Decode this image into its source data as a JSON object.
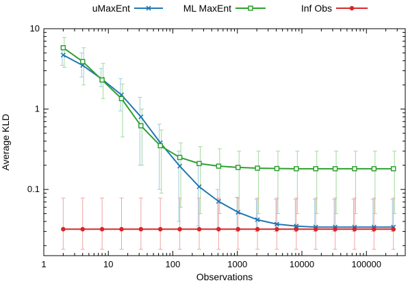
{
  "chart_data": {
    "type": "line",
    "xlabel": "Observations",
    "ylabel": "Average KLD",
    "x_scale": "log",
    "y_scale": "log",
    "xlim": [
      1,
      400000
    ],
    "ylim": [
      0.015,
      10
    ],
    "x_ticks": [
      {
        "value": 1,
        "label": "1"
      },
      {
        "value": 10,
        "label": "10"
      },
      {
        "value": 100,
        "label": "100"
      },
      {
        "value": 1000,
        "label": "1000"
      },
      {
        "value": 10000,
        "label": "10000"
      },
      {
        "value": 100000,
        "label": "100000"
      }
    ],
    "y_ticks": [
      {
        "value": 0.1,
        "label": "0.1"
      },
      {
        "value": 1,
        "label": "1"
      },
      {
        "value": 10,
        "label": "10"
      }
    ],
    "grid": false,
    "legend_position": "top",
    "x": [
      2,
      4,
      8,
      16,
      32,
      64,
      128,
      256,
      512,
      1024,
      2048,
      4096,
      8192,
      16384,
      32768,
      65536,
      131072,
      262144
    ],
    "series": [
      {
        "name": "uMaxEnt",
        "color": "#1f77b4",
        "error_color": "#9ecae1",
        "marker": "x",
        "values": [
          4.7,
          3.5,
          2.35,
          1.5,
          0.8,
          0.38,
          0.195,
          0.108,
          0.071,
          0.052,
          0.042,
          0.037,
          0.035,
          0.034,
          0.034,
          0.034,
          0.034,
          0.034
        ],
        "err_low": [
          3.5,
          2.5,
          1.9,
          0.95,
          0.2,
          0.1,
          0.04,
          0.035,
          0.033,
          0.03,
          0.03,
          0.03,
          0.03,
          0.03,
          0.03,
          0.03,
          0.03,
          0.03
        ],
        "err_high": [
          6.0,
          5.0,
          3.2,
          2.4,
          1.4,
          0.65,
          0.3,
          0.2,
          0.1,
          0.08,
          0.075,
          0.075,
          0.075,
          0.075,
          0.075,
          0.075,
          0.075,
          0.075
        ]
      },
      {
        "name": "ML MaxEnt",
        "color": "#2ca02c",
        "error_color": "#a1d99b",
        "marker": "square",
        "values": [
          5.8,
          3.9,
          2.3,
          1.35,
          0.62,
          0.35,
          0.25,
          0.21,
          0.195,
          0.188,
          0.184,
          0.182,
          0.181,
          0.181,
          0.181,
          0.181,
          0.181,
          0.181
        ],
        "err_low": [
          3.3,
          2.0,
          1.35,
          0.45,
          0.2,
          0.09,
          0.06,
          0.05,
          0.05,
          0.05,
          0.05,
          0.05,
          0.05,
          0.05,
          0.05,
          0.05,
          0.05,
          0.05
        ],
        "err_high": [
          7.8,
          5.8,
          3.7,
          2.05,
          1.0,
          0.55,
          0.38,
          0.34,
          0.32,
          0.3,
          0.3,
          0.3,
          0.3,
          0.3,
          0.3,
          0.3,
          0.3,
          0.3
        ]
      },
      {
        "name": "Inf Obs",
        "color": "#d62728",
        "error_color": "#f4a3a3",
        "marker": "circle",
        "values": [
          0.032,
          0.032,
          0.032,
          0.032,
          0.032,
          0.032,
          0.032,
          0.032,
          0.032,
          0.032,
          0.032,
          0.032,
          0.032,
          0.032,
          0.032,
          0.032,
          0.032,
          0.032
        ],
        "err_low": [
          0.018,
          0.018,
          0.018,
          0.018,
          0.018,
          0.018,
          0.018,
          0.018,
          0.018,
          0.018,
          0.018,
          0.018,
          0.018,
          0.018,
          0.018,
          0.018,
          0.018,
          0.018
        ],
        "err_high": [
          0.078,
          0.078,
          0.078,
          0.078,
          0.078,
          0.078,
          0.078,
          0.078,
          0.078,
          0.078,
          0.078,
          0.078,
          0.078,
          0.078,
          0.078,
          0.078,
          0.078,
          0.078
        ]
      }
    ]
  }
}
